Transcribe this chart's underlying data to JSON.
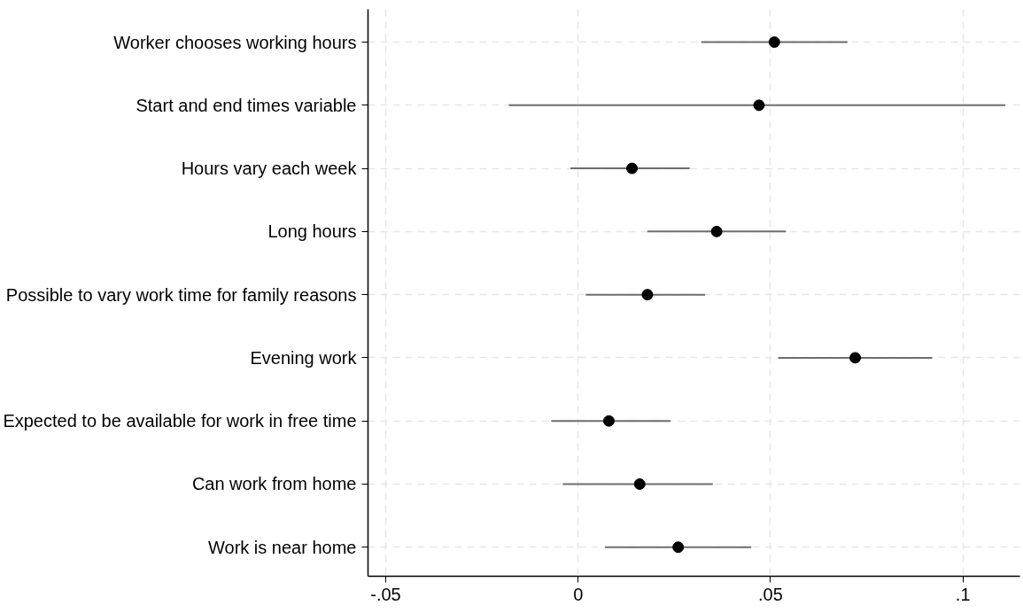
{
  "chart_data": {
    "type": "scatter",
    "orientation": "horizontal",
    "categories": [
      "Worker chooses working hours",
      "Start and end times variable",
      "Hours vary each week",
      "Long hours",
      "Possible to vary work time for family reasons",
      "Evening work",
      "Expected to be available for work in free time",
      "Can work from home",
      "Work is near home"
    ],
    "values": [
      0.051,
      0.047,
      0.014,
      0.036,
      0.018,
      0.072,
      0.008,
      0.016,
      0.026
    ],
    "errors": [
      [
        0.032,
        0.07
      ],
      [
        -0.018,
        0.111
      ],
      [
        -0.002,
        0.029
      ],
      [
        0.018,
        0.054
      ],
      [
        0.002,
        0.033
      ],
      [
        0.052,
        0.092
      ],
      [
        -0.007,
        0.024
      ],
      [
        -0.004,
        0.035
      ],
      [
        0.007,
        0.045
      ]
    ],
    "color": "#000000",
    "xlim": [
      -0.0546,
      0.1148
    ],
    "xticks": [
      {
        "value": -0.05,
        "label": "-.05"
      },
      0,
      {
        "value": 0.05,
        "label": ".05"
      },
      {
        "value": 0.1,
        "label": ".1"
      }
    ],
    "grid": true,
    "marker": "circle"
  }
}
